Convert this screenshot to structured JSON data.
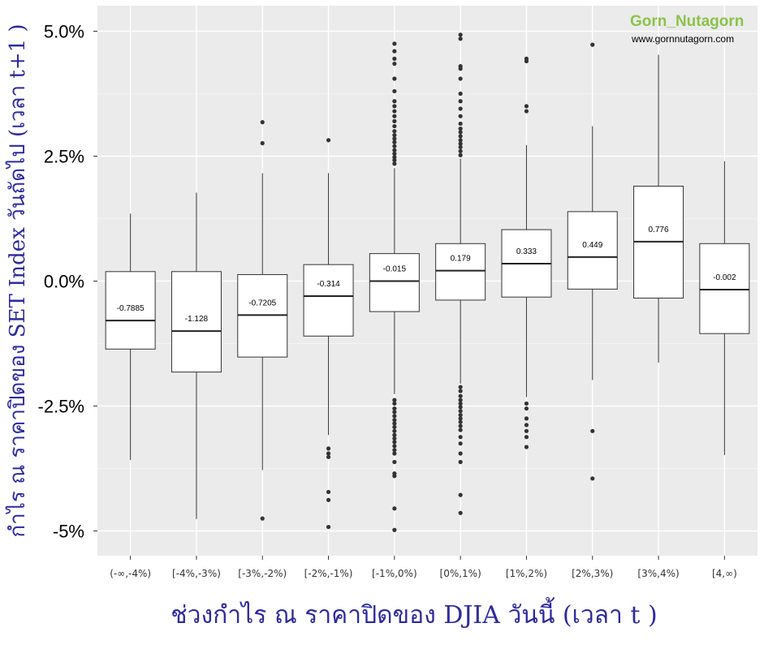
{
  "watermark": {
    "brand": "Gorn_Nutagorn",
    "url": "www.gornnutagorn.com",
    "brand_color": "#8bc34a"
  },
  "chart_data": {
    "type": "boxplot",
    "title": "",
    "xlabel": "ช่วงกำไร ณ ราคาปิดของ DJIA วันนี้ (เวลา t )",
    "ylabel": "กำไร ณ ราคาปิดของ SET Index วันถัดไป (เวลา t+1 )",
    "ylim": [
      -5.5,
      5.3
    ],
    "yticks": [
      5.0,
      2.5,
      0.0,
      -2.5,
      -5.0
    ],
    "ytick_labels": [
      "5.0%",
      "2.5%",
      "0.0%",
      "-2.5%",
      "-5%"
    ],
    "grid": true,
    "panel_color": "#ebebeb",
    "categories": [
      "(-∞,-4%)",
      "[-4%,-3%)",
      "[-3%,-2%)",
      "[-2%,-1%)",
      "[-1%,0%)",
      "[0%,1%)",
      "[1%,2%)",
      "[2%,3%)",
      "[3%,4%)",
      "[4,∞)"
    ],
    "boxes": [
      {
        "q1": -1.36,
        "median": -0.79,
        "q3": 0.19,
        "whisker_low": -3.58,
        "whisker_high": 1.35,
        "label": "-0.7885",
        "outliers": []
      },
      {
        "q1": -1.82,
        "median": -1.0,
        "q3": 0.19,
        "whisker_low": -4.76,
        "whisker_high": 1.77,
        "label": "-1.128",
        "outliers": []
      },
      {
        "q1": -1.52,
        "median": -0.68,
        "q3": 0.13,
        "whisker_low": -3.78,
        "whisker_high": 2.16,
        "label": "-0.7205",
        "outliers": [
          3.18,
          2.76,
          -4.75
        ]
      },
      {
        "q1": -1.1,
        "median": -0.3,
        "q3": 0.33,
        "whisker_low": -3.08,
        "whisker_high": 2.16,
        "label": "-0.314",
        "outliers": [
          2.82,
          -3.35,
          -3.45,
          -3.52,
          -4.22,
          -4.38,
          -4.92
        ]
      },
      {
        "q1": -0.61,
        "median": 0.0,
        "q3": 0.55,
        "whisker_low": -2.26,
        "whisker_high": 2.26,
        "label": "-0.015",
        "outliers": [
          4.75,
          4.6,
          4.45,
          4.35,
          4.05,
          3.8,
          3.6,
          3.5,
          3.4,
          3.3,
          3.2,
          3.1,
          3.0,
          2.92,
          2.85,
          2.78,
          2.7,
          2.62,
          2.55,
          2.48,
          2.42,
          2.35,
          -2.38,
          -2.45,
          -2.55,
          -2.62,
          -2.7,
          -2.78,
          -2.85,
          -2.92,
          -3.0,
          -3.08,
          -3.15,
          -3.22,
          -3.3,
          -3.38,
          -3.45,
          -3.62,
          -3.85,
          -3.9,
          -4.55,
          -4.98
        ]
      },
      {
        "q1": -0.38,
        "median": 0.21,
        "q3": 0.75,
        "whisker_low": -2.05,
        "whisker_high": 2.45,
        "label": "0.179",
        "outliers": [
          4.93,
          4.85,
          4.3,
          4.25,
          4.05,
          3.75,
          3.6,
          3.45,
          3.3,
          3.15,
          3.05,
          2.98,
          2.9,
          2.82,
          2.75,
          2.68,
          2.6,
          2.52,
          -2.12,
          -2.2,
          -2.3,
          -2.38,
          -2.45,
          -2.52,
          -2.6,
          -2.68,
          -2.75,
          -2.82,
          -2.9,
          -2.98,
          -3.12,
          -3.25,
          -3.45,
          -3.62,
          -4.28,
          -4.64
        ]
      },
      {
        "q1": -0.32,
        "median": 0.35,
        "q3": 1.03,
        "whisker_low": -2.32,
        "whisker_high": 2.72,
        "label": "0.333",
        "outliers": [
          4.45,
          4.4,
          3.5,
          3.4,
          -2.45,
          -2.55,
          -2.75,
          -2.88,
          -3.0,
          -3.12,
          -3.32
        ]
      },
      {
        "q1": -0.16,
        "median": 0.48,
        "q3": 1.39,
        "whisker_low": -1.98,
        "whisker_high": 3.1,
        "label": "0.449",
        "outliers": [
          4.73,
          -3.0,
          -3.95
        ]
      },
      {
        "q1": -0.34,
        "median": 0.79,
        "q3": 1.9,
        "whisker_low": -1.63,
        "whisker_high": 4.53,
        "label": "0.776",
        "outliers": []
      },
      {
        "q1": -1.05,
        "median": -0.17,
        "q3": 0.75,
        "whisker_low": -3.48,
        "whisker_high": 2.4,
        "label": "-0.002",
        "outliers": []
      }
    ]
  }
}
